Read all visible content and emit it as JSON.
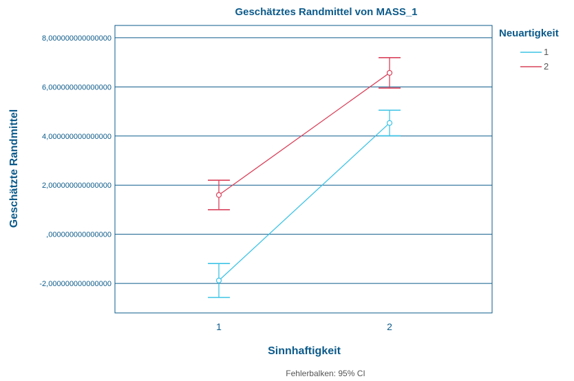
{
  "chart_data": {
    "type": "line",
    "title": "Geschätztes Randmittel von MASS_1",
    "xlabel": "Sinnhaftigkeit",
    "ylabel": "Geschätzte Randmittel",
    "categories": [
      "1",
      "2"
    ],
    "ylim": [
      -3.2,
      8.5
    ],
    "yticks": [
      8,
      6,
      4,
      2,
      0,
      -2
    ],
    "ytick_labels": [
      "8,000000000000000",
      "6,000000000000000",
      "4,000000000000000",
      "2,000000000000000",
      ",000000000000000",
      "-2,000000000000000"
    ],
    "grid": true,
    "legend_title": "Neuartigkeit",
    "legend_position": "top-right",
    "footnote": "Fehlerbalken: 95% CI",
    "series": [
      {
        "name": "1",
        "color": "#3cc3e6",
        "values": [
          -1.88,
          4.53
        ],
        "ci_low": [
          -2.57,
          4.01
        ],
        "ci_high": [
          -1.19,
          5.05
        ]
      },
      {
        "name": "2",
        "color": "#d9415a",
        "values": [
          1.6,
          6.57
        ],
        "ci_low": [
          1.0,
          5.95
        ],
        "ci_high": [
          2.2,
          7.19
        ]
      }
    ]
  }
}
